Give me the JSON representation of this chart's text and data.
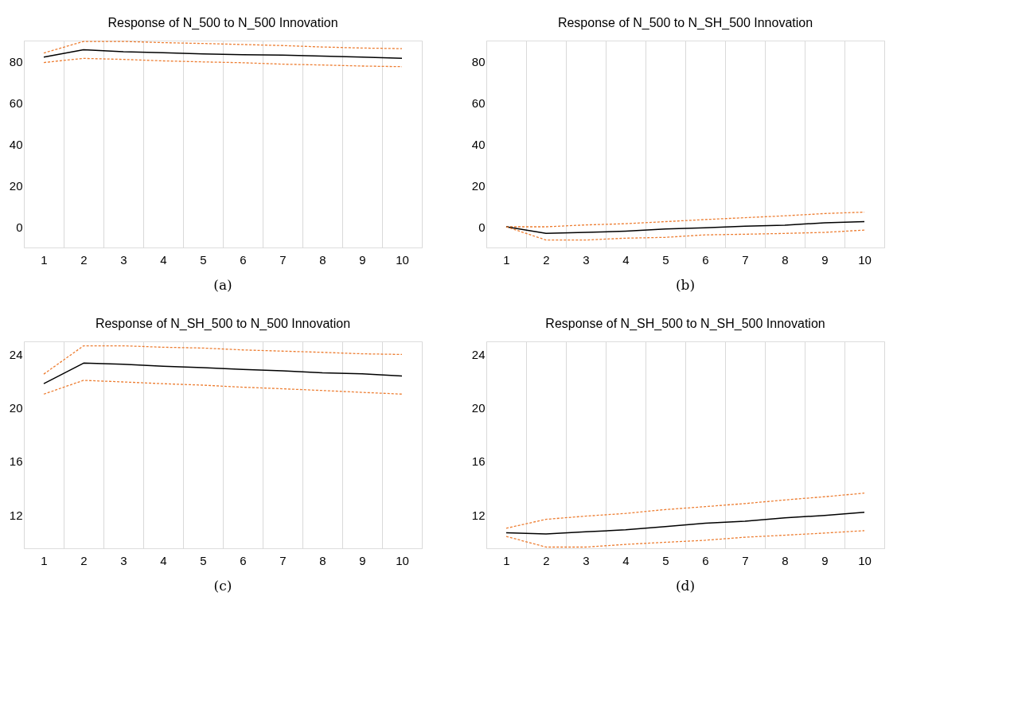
{
  "chart_data": [
    {
      "type": "line",
      "title": "Response of N_500 to N_500 Innovation",
      "categories": [
        "1",
        "2",
        "3",
        "4",
        "5",
        "6",
        "7",
        "8",
        "9",
        "10"
      ],
      "ylim": [
        -10,
        90
      ],
      "yticks": [
        0,
        20,
        40,
        60,
        80
      ],
      "grid": "x",
      "legend": false,
      "annotations": [
        "(a)"
      ],
      "series": [
        {
          "color": "#ed7d31",
          "line_style": "dashed",
          "values": [
            84.0,
            89.6,
            89.6,
            89.0,
            88.6,
            88.1,
            87.6,
            86.9,
            86.4,
            86.1
          ]
        },
        {
          "color": "#000000",
          "line_style": "solid",
          "values": [
            82.0,
            85.6,
            84.6,
            84.1,
            83.6,
            83.2,
            83.0,
            82.5,
            82.0,
            81.4
          ]
        },
        {
          "color": "#ed7d31",
          "line_style": "dashed",
          "values": [
            79.4,
            81.4,
            80.9,
            80.2,
            79.7,
            79.3,
            78.6,
            78.2,
            77.7,
            77.4
          ]
        }
      ]
    },
    {
      "type": "line",
      "title": "Response of N_500 to N_SH_500 Innovation",
      "categories": [
        "1",
        "2",
        "3",
        "4",
        "5",
        "6",
        "7",
        "8",
        "9",
        "10"
      ],
      "ylim": [
        -10,
        90
      ],
      "yticks": [
        0,
        20,
        40,
        60,
        80
      ],
      "grid": "x",
      "legend": false,
      "annotations": [
        "(b)"
      ],
      "series": [
        {
          "color": "#ed7d31",
          "line_style": "dashed",
          "values": [
            0,
            0,
            0.9,
            1.5,
            2.5,
            3.5,
            4.4,
            5.3,
            6.4,
            7.1
          ]
        },
        {
          "color": "#000000",
          "line_style": "solid",
          "values": [
            0,
            -3.2,
            -2.7,
            -2.1,
            -1.1,
            -0.5,
            0.3,
            0.8,
            1.9,
            2.5
          ]
        },
        {
          "color": "#ed7d31",
          "line_style": "dashed",
          "values": [
            0,
            -6.4,
            -6.4,
            -5.5,
            -5.1,
            -3.9,
            -3.6,
            -3.2,
            -2.7,
            -1.6
          ]
        }
      ]
    },
    {
      "type": "line",
      "title": "Response of N_SH_500 to N_500 Innovation",
      "categories": [
        "1",
        "2",
        "3",
        "4",
        "5",
        "6",
        "7",
        "8",
        "9",
        "10"
      ],
      "ylim": [
        9.5,
        25
      ],
      "yticks": [
        12,
        16,
        20,
        24
      ],
      "grid": "x",
      "legend": false,
      "annotations": [
        "(c)"
      ],
      "series": [
        {
          "color": "#ed7d31",
          "line_style": "dashed",
          "values": [
            22.55,
            24.67,
            24.67,
            24.56,
            24.5,
            24.36,
            24.27,
            24.18,
            24.07,
            24.02
          ]
        },
        {
          "color": "#000000",
          "line_style": "solid",
          "values": [
            21.83,
            23.37,
            23.28,
            23.13,
            23.04,
            22.9,
            22.8,
            22.65,
            22.57,
            22.4
          ]
        },
        {
          "color": "#ed7d31",
          "line_style": "dashed",
          "values": [
            21.05,
            22.08,
            21.96,
            21.83,
            21.72,
            21.57,
            21.45,
            21.32,
            21.18,
            21.05
          ]
        }
      ]
    },
    {
      "type": "line",
      "title": "Response of N_SH_500 to N_SH_500 Innovation",
      "categories": [
        "1",
        "2",
        "3",
        "4",
        "5",
        "6",
        "7",
        "8",
        "9",
        "10"
      ],
      "ylim": [
        9.5,
        25
      ],
      "yticks": [
        12,
        16,
        20,
        24
      ],
      "grid": "x",
      "legend": false,
      "annotations": [
        "(d)"
      ],
      "series": [
        {
          "color": "#ed7d31",
          "line_style": "dashed",
          "values": [
            11.0,
            11.67,
            11.91,
            12.11,
            12.4,
            12.62,
            12.85,
            13.12,
            13.36,
            13.63
          ]
        },
        {
          "color": "#000000",
          "line_style": "solid",
          "values": [
            10.66,
            10.57,
            10.73,
            10.88,
            11.13,
            11.38,
            11.53,
            11.78,
            11.96,
            12.2
          ]
        },
        {
          "color": "#ed7d31",
          "line_style": "dashed",
          "values": [
            10.39,
            9.59,
            9.59,
            9.79,
            9.95,
            10.1,
            10.33,
            10.48,
            10.64,
            10.82
          ]
        }
      ]
    }
  ]
}
